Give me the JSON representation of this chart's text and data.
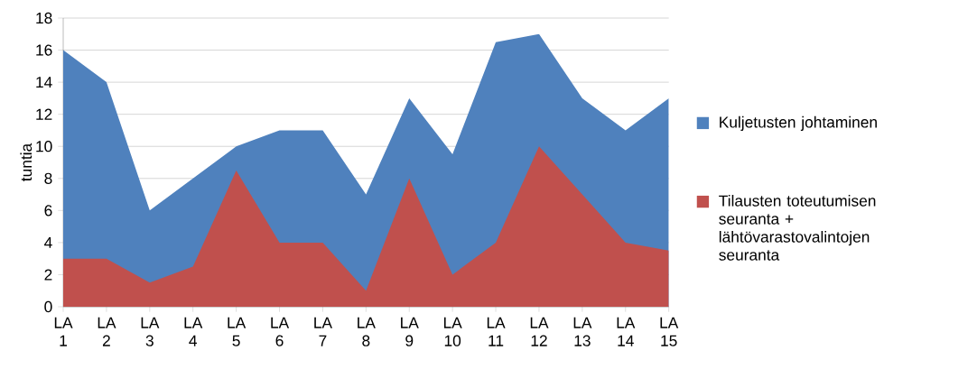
{
  "chart_data": {
    "type": "area",
    "ylabel": "tuntia",
    "categories": [
      "LA 1",
      "LA 2",
      "LA 3",
      "LA 4",
      "LA 5",
      "LA 6",
      "LA 7",
      "LA 8",
      "LA 9",
      "LA 10",
      "LA 11",
      "LA 12",
      "LA 13",
      "LA 14",
      "LA 15"
    ],
    "series": [
      {
        "name": "Kuljetusten johtaminen",
        "color": "#4f81bd",
        "values": [
          16,
          14,
          6,
          8,
          10,
          11,
          11,
          7,
          13,
          9.5,
          16.5,
          17,
          13,
          11,
          13
        ]
      },
      {
        "name": "Tilausten toteutumisen seuranta + lähtövarastovalintojen seuranta",
        "color": "#c0504d",
        "values": [
          3,
          3,
          1.5,
          2.5,
          8.5,
          4,
          4,
          1,
          8,
          2,
          4,
          10,
          7,
          4,
          3.5
        ]
      }
    ],
    "ylim": [
      0,
      18
    ],
    "yticks": [
      0,
      2,
      4,
      6,
      8,
      10,
      12,
      14,
      16,
      18
    ],
    "grid": "y",
    "legend": "right"
  }
}
